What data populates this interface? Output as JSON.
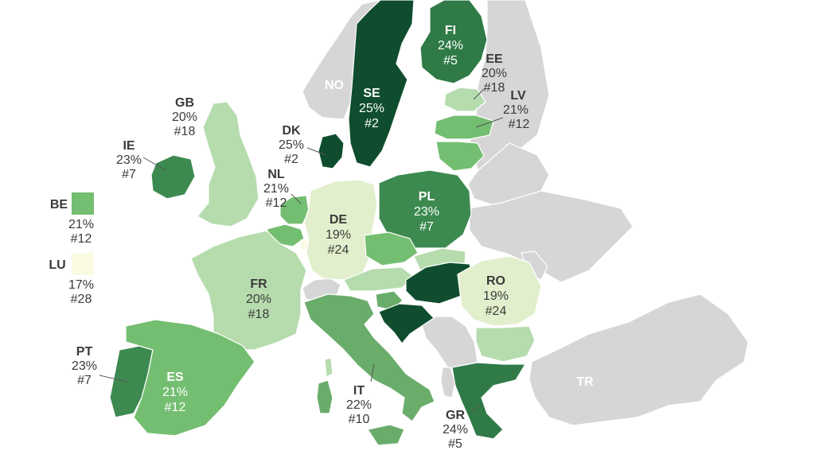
{
  "colors": {
    "tier_25": "#0f4d2e",
    "tier_24": "#2f7a47",
    "tier_23": "#3d8a50",
    "tier_22": "#6aad6b",
    "tier_21": "#74be71",
    "tier_20": "#b6dcae",
    "tier_19": "#e2efcc",
    "tier_17": "#fbfbe3",
    "no_data": "#d6d6d6",
    "text_dark": "#3a3a3a",
    "text_light": "#ffffff"
  },
  "countries": [
    {
      "code": "FI",
      "value": "24%",
      "rank": "#5"
    },
    {
      "code": "EE",
      "value": "20%",
      "rank": "#18"
    },
    {
      "code": "LV",
      "value": "21%",
      "rank": "#12"
    },
    {
      "code": "SE",
      "value": "25%",
      "rank": "#2"
    },
    {
      "code": "NO"
    },
    {
      "code": "GB",
      "value": "20%",
      "rank": "#18"
    },
    {
      "code": "DK",
      "value": "25%",
      "rank": "#2"
    },
    {
      "code": "IE",
      "value": "23%",
      "rank": "#7"
    },
    {
      "code": "NL",
      "value": "21%",
      "rank": "#12"
    },
    {
      "code": "PL",
      "value": "23%",
      "rank": "#7"
    },
    {
      "code": "DE",
      "value": "19%",
      "rank": "#24"
    },
    {
      "code": "FR",
      "value": "20%",
      "rank": "#18"
    },
    {
      "code": "RO",
      "value": "19%",
      "rank": "#24"
    },
    {
      "code": "PT",
      "value": "23%",
      "rank": "#7"
    },
    {
      "code": "ES",
      "value": "21%",
      "rank": "#12"
    },
    {
      "code": "IT",
      "value": "22%",
      "rank": "#10"
    },
    {
      "code": "GR",
      "value": "24%",
      "rank": "#5"
    },
    {
      "code": "TR"
    }
  ],
  "legend": [
    {
      "code": "BE",
      "value": "21%",
      "rank": "#12"
    },
    {
      "code": "LU",
      "value": "17%",
      "rank": "#28"
    }
  ]
}
